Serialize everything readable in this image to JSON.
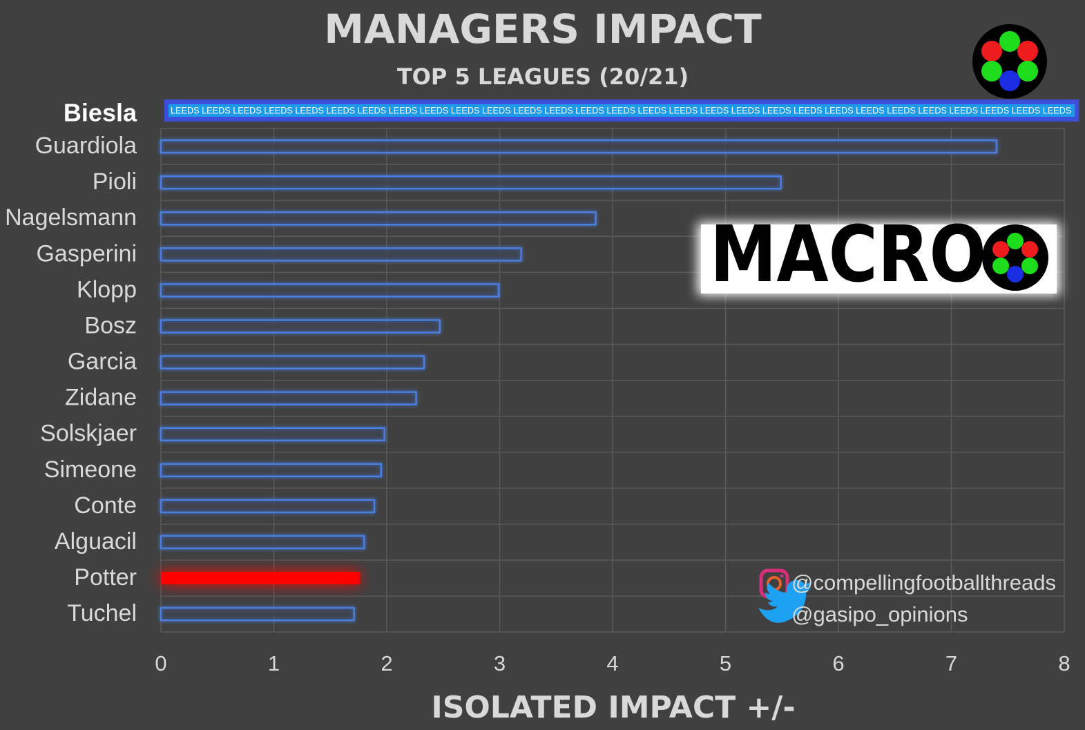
{
  "chart_data": {
    "type": "bar",
    "orientation": "horizontal",
    "title": "MANAGERS IMPACT",
    "subtitle": "TOP 5 LEAGUES (20/21)",
    "x_label": "ISOLATED IMPACT +/-",
    "categories": [
      "Biesla",
      "Guardiola",
      "Pioli",
      "Nagelsmann",
      "Gasperini",
      "Klopp",
      "Bosz",
      "Garcia",
      "Zidane",
      "Solskjaer",
      "Simeone",
      "Conte",
      "Alguacil",
      "Potter",
      "Tuchel"
    ],
    "values": [
      8.1,
      7.4,
      5.49,
      3.85,
      3.19,
      2.99,
      2.47,
      2.33,
      2.26,
      1.98,
      1.95,
      1.89,
      1.8,
      1.76,
      1.71
    ],
    "color": "#4a7fe0",
    "highlight": {
      "category": "Potter",
      "color": "#ff0000"
    },
    "banner": {
      "category": "Biesla",
      "color": "#3d4fd8",
      "text": "LEEDS LEEDS LEEDS LEEDS LEEDS LEEDS LEEDS LEEDS LEEDS LEEDS LEEDS LEEDS LEEDS LEEDS LEEDS LEEDS LEEDS LEEDS LEEDS LEEDS LEEDS LEEDS LEEDS LEEDS LEEDS LEEDS LEEDS LEEDS LEEDS"
    },
    "xlim": [
      0,
      8
    ],
    "xticks": [
      0,
      1,
      2,
      3,
      4,
      5,
      6,
      7,
      8
    ],
    "grid": true,
    "logo_text": "MACRO",
    "handles": [
      "@compellingfootballthreads",
      "@gasipo_opinions"
    ]
  }
}
